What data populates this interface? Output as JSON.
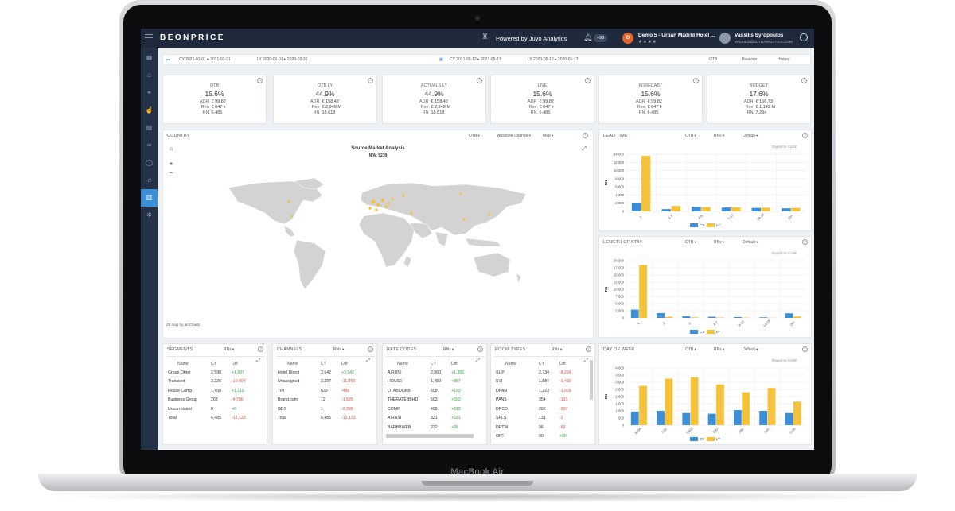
{
  "device": {
    "brand": "MacBook Air"
  },
  "header": {
    "logo": "BEONPRICE",
    "powered": "Powered by Juyo Analytics",
    "notifications": "+99",
    "hotel_initial": "D",
    "hotel_name": "Demo 5 - Urban Madrid Hotel ...",
    "hotel_stars": "★★★★",
    "user_name": "Vassilis Syropoulos",
    "user_email": "VASSILIS@JUYOANALYTICS.COM"
  },
  "sidebar": {
    "items": [
      "dashboard-icon",
      "hotel-icon",
      "vacation-icon",
      "thumbs-up-icon",
      "document-icon",
      "binoculars-icon",
      "chat-icon",
      "bell-icon",
      "chart-icon",
      "settings-icon"
    ],
    "active_index": 8
  },
  "filters": {
    "cy1": "CY  2021-01-01 ▸ 2021-03-31",
    "ly1": "LY  2020-01-01 ▸ 2020-03-31",
    "cy2": "CY  2021-05-12 ▸ 2021-05-13",
    "ly2": "LY  2020-05-12 ▸ 2020-05-13",
    "mode": "OTB",
    "previous": "Previous",
    "history": "History"
  },
  "kpis": [
    {
      "title": "OTB",
      "value": "15.6%",
      "adr": "€ 99.82",
      "rev": "€ 647 k",
      "rn": "6,485"
    },
    {
      "title": "OTB LY",
      "value": "44.9%",
      "adr": "€ 158.42",
      "rev": "€ 2,949 M",
      "rn": "18,618"
    },
    {
      "title": "ACTUALS LY",
      "value": "44.9%",
      "adr": "€ 158.42",
      "rev": "€ 2,949 M",
      "rn": "18,618"
    },
    {
      "title": "LIVE",
      "value": "15.6%",
      "adr": "€ 99.82",
      "rev": "€ 647 k",
      "rn": "6,485"
    },
    {
      "title": "FORECAST",
      "value": "15.6%",
      "adr": "€ 99.82",
      "rev": "€ 647 k",
      "rn": "6,485"
    },
    {
      "title": "BUDGET",
      "value": "17.6%",
      "adr": "€ 156.73",
      "rev": "€ 1,142 M",
      "rn": "7,294"
    }
  ],
  "kpi_labels": {
    "adr": "ADR",
    "rev": "Rev",
    "rn": "RN"
  },
  "country": {
    "title": "COUNTRY",
    "dd1": "OTB",
    "dd2": "Absolute Change",
    "dd3": "Map",
    "map_title": "Source Market Analysis",
    "map_sub": "N/A: 5239",
    "credit": "JS map by amCharts"
  },
  "charts_common": {
    "export": "Export to XLSX",
    "cy": "CY",
    "ly": "LY",
    "dd1": "OTB",
    "dd2": "RNs",
    "dd3": "Default",
    "ylabel": "RN"
  },
  "chart_data": [
    {
      "type": "bar",
      "title": "LEAD TIME",
      "categories": [
        "1",
        "2-3",
        "4-6",
        "7-13",
        "14-28",
        "29+"
      ],
      "series": [
        {
          "name": "CY",
          "values": [
            1950,
            550,
            1150,
            950,
            850,
            750
          ]
        },
        {
          "name": "LY",
          "values": [
            13600,
            1350,
            1050,
            1000,
            900,
            850
          ]
        }
      ],
      "yticks": [
        "0",
        "2,000",
        "4,000",
        "6,000",
        "8,000",
        "10,000",
        "12,000",
        "14,000"
      ],
      "ylim": [
        0,
        14000
      ]
    },
    {
      "type": "bar",
      "title": "LENGTH OF STAY",
      "categories": [
        "1",
        "2",
        "3",
        "4-7",
        "8-13",
        "14-28",
        "29+"
      ],
      "series": [
        {
          "name": "CY",
          "values": [
            2900,
            1700,
            600,
            400,
            300,
            200,
            1600
          ]
        },
        {
          "name": "LY",
          "values": [
            18500,
            400,
            200,
            150,
            100,
            80,
            500
          ]
        }
      ],
      "yticks": [
        "0",
        "2,500",
        "5,000",
        "7,500",
        "10,000",
        "12,500",
        "15,000",
        "17,500",
        "20,000"
      ],
      "ylim": [
        0,
        20000
      ]
    },
    {
      "type": "bar",
      "title": "DAY OF WEEK",
      "categories": [
        "MON",
        "TUE",
        "WED",
        "THU",
        "FRI",
        "SAT",
        "SUN"
      ],
      "series": [
        {
          "name": "CY",
          "values": [
            950,
            1000,
            850,
            800,
            1050,
            1000,
            850
          ]
        },
        {
          "name": "LY",
          "values": [
            2750,
            3250,
            3350,
            2850,
            2300,
            2600,
            1650
          ]
        }
      ],
      "yticks": [
        "0",
        "500",
        "1,000",
        "1,500",
        "2,000",
        "2,500",
        "3,000",
        "3,500",
        "4,000"
      ],
      "ylim": [
        0,
        4000
      ]
    }
  ],
  "segments": {
    "title": "SEGMENTS",
    "dd": "RNs",
    "cols": [
      "Name",
      "CY",
      "Diff"
    ],
    "rows": [
      [
        "Group Other",
        "2,598",
        "+1,607"
      ],
      [
        "Transient",
        "2,226",
        "-10,094"
      ],
      [
        "House Comp",
        "1,458",
        "+1,110"
      ],
      [
        "Business Group",
        "203",
        "-4,756"
      ],
      [
        "Uncorrelated",
        "0",
        "+0"
      ],
      [
        "Total",
        "6,485",
        "-12,133"
      ]
    ]
  },
  "channels": {
    "title": "CHANNELS",
    "dd": "RNs",
    "cols": [
      "Name",
      "CY",
      "Diff"
    ],
    "rows": [
      [
        "Hotel Direct",
        "3,542",
        "+3,542"
      ],
      [
        "Unassigned",
        "2,297",
        "-11,066"
      ],
      [
        "TPI",
        "633",
        "-488"
      ],
      [
        "Brand.com",
        "12",
        "-1,526"
      ],
      [
        "GDS",
        "1",
        "-2,395"
      ],
      [
        "Total",
        "6,485",
        "-12,133"
      ]
    ]
  },
  "ratecodes": {
    "title": "RATE CODES",
    "dd": "RNs",
    "cols": [
      "Name",
      "CY",
      "Diff"
    ],
    "rows": [
      [
        "AIRUNI",
        "2,060",
        "+1,355"
      ],
      [
        "HOUSE",
        "1,450",
        "+887"
      ],
      [
        "OTABOOBB",
        "608",
        "+193"
      ],
      [
        "THERATEBBHD",
        "503",
        "+503"
      ],
      [
        "COMP",
        "408",
        "+313"
      ],
      [
        "AIRASI",
        "321",
        "+321"
      ],
      [
        "BARBBWEB",
        "232",
        "+95"
      ]
    ]
  },
  "roomtypes": {
    "title": "ROOM TYPES",
    "dd": "RNs",
    "cols": [
      "Name",
      "CY",
      "Diff"
    ],
    "rows": [
      [
        "SUP",
        "2,734",
        "-8,224"
      ],
      [
        "SVI",
        "1,587",
        "-1,432"
      ],
      [
        "DPAN",
        "1,223",
        "-1,028"
      ],
      [
        "PANS",
        "354",
        "-131"
      ],
      [
        "DPCO",
        "202",
        "-307"
      ],
      [
        "SPLS",
        "131",
        "-2"
      ],
      [
        "DPTW",
        "96",
        "-63"
      ],
      [
        "OFF",
        "90",
        "+90"
      ]
    ]
  }
}
